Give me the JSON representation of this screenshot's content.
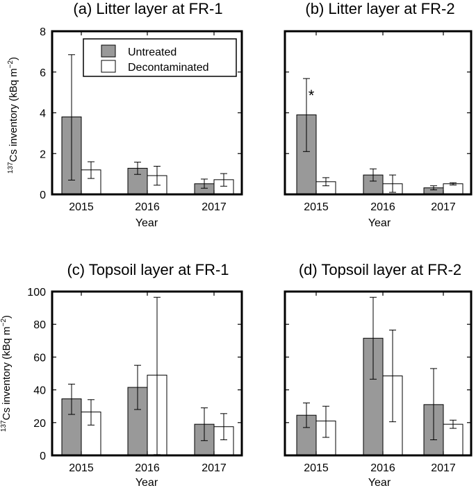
{
  "chart_data": [
    {
      "type": "bar",
      "title": "(a) Litter layer at FR-1",
      "xlabel": "Year",
      "ylabel_parts": {
        "superscript": "137",
        "main": "Cs inventory (kBq m",
        "unit_exp": "−2",
        "close": ")"
      },
      "categories": [
        "2015",
        "2016",
        "2017"
      ],
      "ylim": [
        0,
        8
      ],
      "yticks": [
        "0",
        "2",
        "4",
        "6",
        "8"
      ],
      "series": [
        {
          "name": "Untreated",
          "color": "#999999",
          "values": [
            3.8,
            1.28,
            0.52
          ],
          "errors": [
            [
              0.7,
              6.85
            ],
            [
              0.98,
              1.58
            ],
            [
              0.3,
              0.75
            ]
          ]
        },
        {
          "name": "Decontaminated",
          "color": "#ffffff",
          "values": [
            1.2,
            0.92,
            0.72
          ],
          "errors": [
            [
              0.78,
              1.6
            ],
            [
              0.45,
              1.38
            ],
            [
              0.4,
              1.02
            ]
          ]
        }
      ],
      "legend_position": "top-right",
      "annotations": []
    },
    {
      "type": "bar",
      "title": "(b) Litter layer at FR-2",
      "xlabel": "Year",
      "categories": [
        "2015",
        "2016",
        "2017"
      ],
      "ylim": [
        0,
        8
      ],
      "series": [
        {
          "name": "Untreated",
          "color": "#999999",
          "values": [
            3.9,
            0.95,
            0.32
          ],
          "errors": [
            [
              2.1,
              5.68
            ],
            [
              0.65,
              1.25
            ],
            [
              0.22,
              0.42
            ]
          ]
        },
        {
          "name": "Decontaminated",
          "color": "#ffffff",
          "values": [
            0.62,
            0.52,
            0.52
          ],
          "errors": [
            [
              0.42,
              0.82
            ],
            [
              0.1,
              0.95
            ],
            [
              0.46,
              0.57
            ]
          ]
        }
      ],
      "annotations": [
        {
          "category": "2015",
          "series": "Untreated",
          "text": "*"
        }
      ]
    },
    {
      "type": "bar",
      "title": "(c) Topsoil layer at FR-1",
      "xlabel": "Year",
      "ylabel_parts": {
        "superscript": "137",
        "main": "Cs inventory (kBq m",
        "unit_exp": "−2",
        "close": ")"
      },
      "categories": [
        "2015",
        "2016",
        "2017"
      ],
      "ylim": [
        0,
        100
      ],
      "yticks": [
        "0",
        "20",
        "40",
        "60",
        "80",
        "100"
      ],
      "series": [
        {
          "name": "Untreated",
          "color": "#999999",
          "values": [
            34.5,
            41.5,
            19.0
          ],
          "errors": [
            [
              25.0,
              43.5
            ],
            [
              28.0,
              55.0
            ],
            [
              9.0,
              29.0
            ]
          ]
        },
        {
          "name": "Decontaminated",
          "color": "#ffffff",
          "values": [
            26.5,
            49.0,
            17.5
          ],
          "errors": [
            [
              18.5,
              34.0
            ],
            [
              0.5,
              96.5
            ],
            [
              9.5,
              25.5
            ]
          ]
        }
      ],
      "annotations": []
    },
    {
      "type": "bar",
      "title": "(d) Topsoil layer at FR-2",
      "xlabel": "Year",
      "categories": [
        "2015",
        "2016",
        "2017"
      ],
      "ylim": [
        0,
        100
      ],
      "series": [
        {
          "name": "Untreated",
          "color": "#999999",
          "values": [
            24.5,
            71.5,
            31.0
          ],
          "errors": [
            [
              17.0,
              32.0
            ],
            [
              46.5,
              96.5
            ],
            [
              9.5,
              53.0
            ]
          ]
        },
        {
          "name": "Decontaminated",
          "color": "#ffffff",
          "values": [
            21.0,
            48.5,
            19.0
          ],
          "errors": [
            [
              11.0,
              30.0
            ],
            [
              20.5,
              76.5
            ],
            [
              16.5,
              21.5
            ]
          ]
        }
      ],
      "annotations": []
    }
  ]
}
